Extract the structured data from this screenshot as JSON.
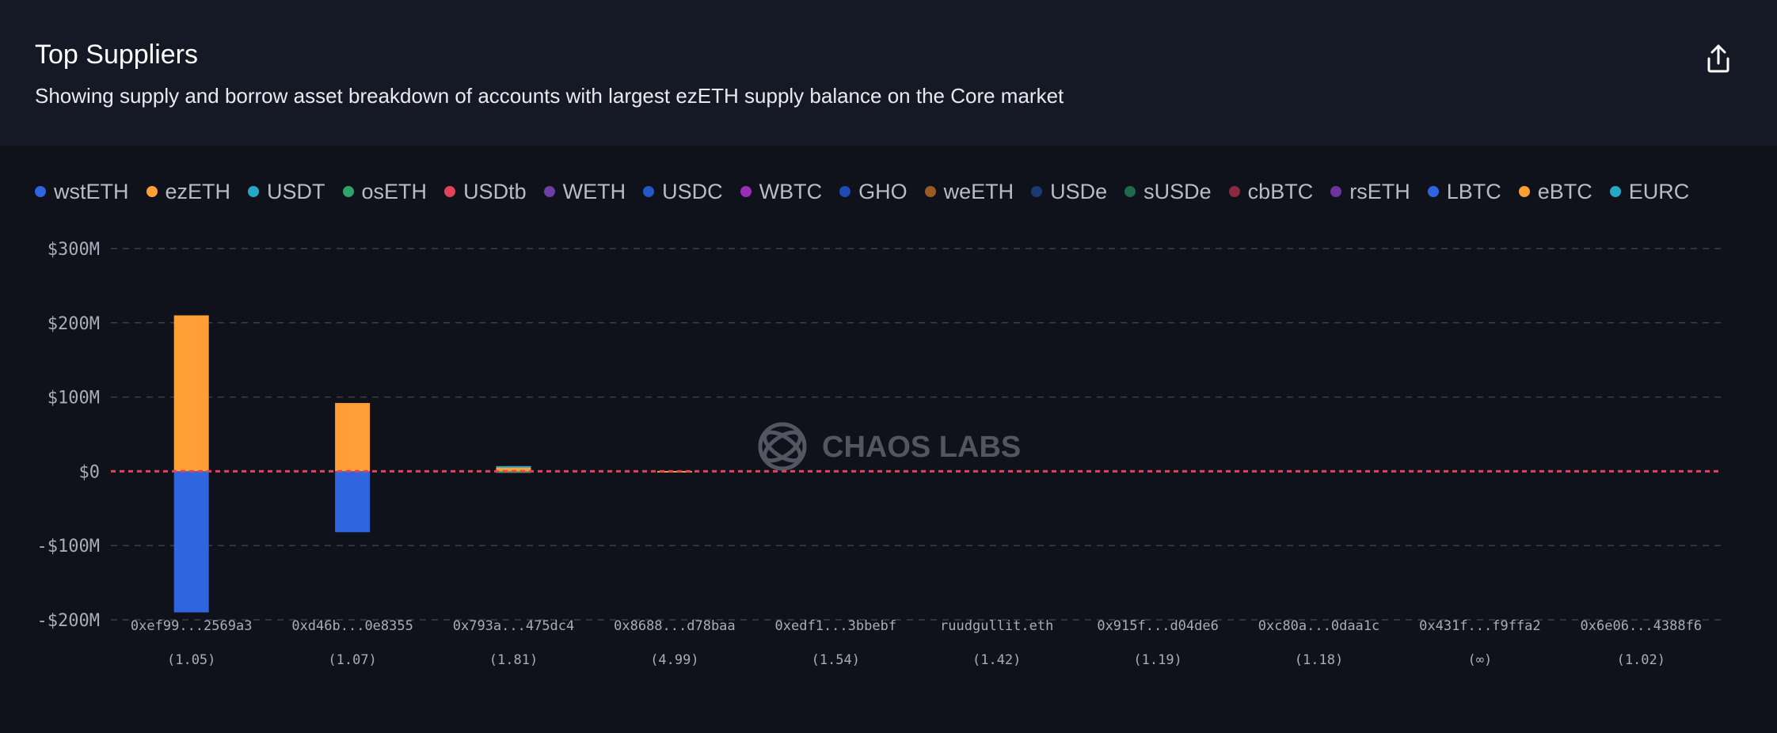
{
  "header": {
    "title": "Top Suppliers",
    "subtitle": "Showing supply and borrow asset breakdown of accounts with largest ezETH supply balance on the Core market"
  },
  "legend": {
    "items": [
      {
        "label": "wstETH",
        "color": "#2f66e0"
      },
      {
        "label": "ezETH",
        "color": "#ff9f35"
      },
      {
        "label": "USDT",
        "color": "#25a9c9"
      },
      {
        "label": "osETH",
        "color": "#2fa36a"
      },
      {
        "label": "USDtb",
        "color": "#e2415a"
      },
      {
        "label": "WETH",
        "color": "#6b3fa4"
      },
      {
        "label": "USDC",
        "color": "#2457c7"
      },
      {
        "label": "WBTC",
        "color": "#9b2dbd"
      },
      {
        "label": "GHO",
        "color": "#1e4bb3"
      },
      {
        "label": "weETH",
        "color": "#9b5a22"
      },
      {
        "label": "USDe",
        "color": "#1a3a74"
      },
      {
        "label": "sUSDe",
        "color": "#1f6a4a"
      },
      {
        "label": "cbBTC",
        "color": "#8a2a40"
      },
      {
        "label": "rsETH",
        "color": "#6f33a0"
      },
      {
        "label": "LBTC",
        "color": "#2f66e0"
      },
      {
        "label": "eBTC",
        "color": "#ff9f35"
      },
      {
        "label": "EURC",
        "color": "#25a9c9"
      }
    ]
  },
  "chart_data": {
    "type": "bar",
    "stacked": true,
    "title": "Top Suppliers",
    "subtitle": "Showing supply and borrow asset breakdown of accounts with largest ezETH supply balance on the Core market",
    "categories": [
      "0xef99...2569a3",
      "0xd46b...0e8355",
      "0x793a...475dc4",
      "0x8688...d78baa",
      "0xedf1...3bbebf",
      "ruudgullit.eth",
      "0x915f...d04de6",
      "0xc80a...0daa1c",
      "0x431f...f9ffa2",
      "0x6e06...4388f6"
    ],
    "health_factors": [
      "(1.05)",
      "(1.07)",
      "(1.81)",
      "(4.99)",
      "(1.54)",
      "(1.42)",
      "(1.19)",
      "(1.18)",
      "(∞)",
      "(1.02)"
    ],
    "series": [
      {
        "name": "ezETH",
        "color": "#ff9f35",
        "values": [
          210,
          92,
          6,
          0.5,
          0,
          0,
          0,
          0,
          0,
          0
        ]
      },
      {
        "name": "USDT",
        "color": "#25a9c9",
        "values": [
          0,
          0,
          1,
          0,
          0,
          0,
          0,
          0,
          0,
          0
        ]
      },
      {
        "name": "osETH",
        "color": "#2fa36a",
        "values": [
          0,
          0,
          -1.5,
          0,
          0,
          0,
          0,
          0,
          0,
          0
        ]
      },
      {
        "name": "wstETH",
        "color": "#2f66e0",
        "values": [
          -190,
          -82,
          0,
          0,
          0,
          0,
          0,
          0,
          0,
          0
        ]
      }
    ],
    "y_ticks": [
      300,
      200,
      100,
      0,
      -100,
      -200
    ],
    "y_tick_labels": [
      "$300M",
      "$200M",
      "$100M",
      "$0",
      "-$100M",
      "-$200M"
    ],
    "ylim": [
      -200,
      300
    ],
    "grid": true,
    "zero_line_color": "#e2415a",
    "watermark": "CHAOS LABS"
  }
}
